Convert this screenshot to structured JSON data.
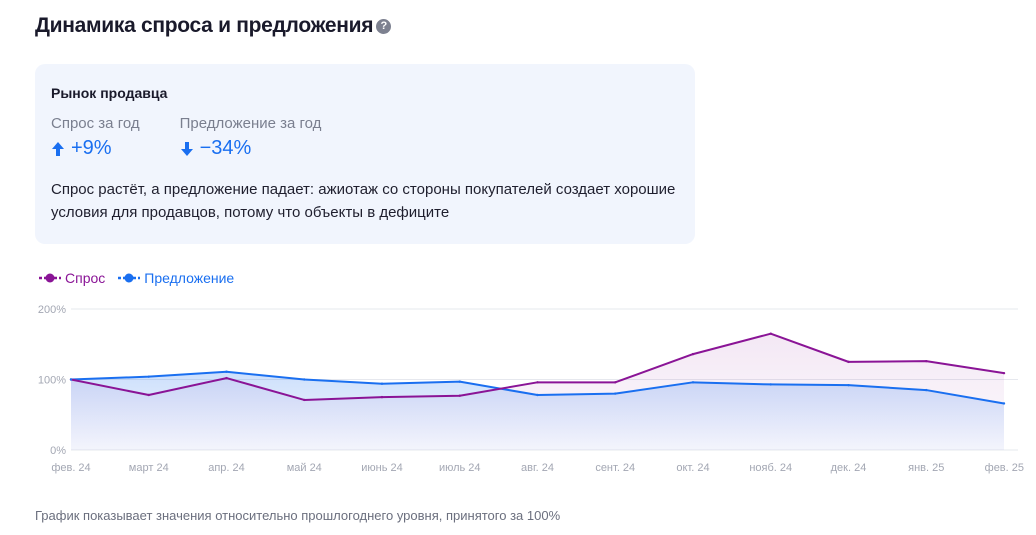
{
  "header": {
    "title": "Динамика спроса и предложения",
    "help_icon": "?"
  },
  "card": {
    "title": "Рынок продавца",
    "metrics": [
      {
        "label": "Спрос за год",
        "value": "+9%",
        "direction": "up"
      },
      {
        "label": "Предложение за год",
        "value": "−34%",
        "direction": "down"
      }
    ],
    "description": "Спрос растёт, а предложение падает: ажиотаж со стороны покупателей создает хорошие условия для продавцов, потому что объекты в дефиците"
  },
  "colors": {
    "demand": "#8a1496",
    "supply": "#1a6ff0",
    "card_bg": "#f1f5fd"
  },
  "chart_data": {
    "type": "line",
    "categories": [
      "фев. 24",
      "март 24",
      "апр. 24",
      "май 24",
      "июнь 24",
      "июль 24",
      "авг. 24",
      "сент. 24",
      "окт. 24",
      "нояб. 24",
      "дек. 24",
      "янв. 25",
      "фев. 25"
    ],
    "series": [
      {
        "name": "Спрос",
        "values": [
          100,
          78,
          102,
          71,
          75,
          77,
          96,
          96,
          136,
          165,
          125,
          126,
          109
        ]
      },
      {
        "name": "Предложение",
        "values": [
          100,
          104,
          111,
          100,
          94,
          97,
          78,
          80,
          96,
          93,
          92,
          85,
          66
        ]
      }
    ],
    "yticks": [
      "0%",
      "100%",
      "200%"
    ],
    "ylim": [
      0,
      200
    ],
    "grid": true,
    "legend": "top-left"
  },
  "footnote": "График показывает значения относительно прошлогоднего уровня, принятого за 100%"
}
